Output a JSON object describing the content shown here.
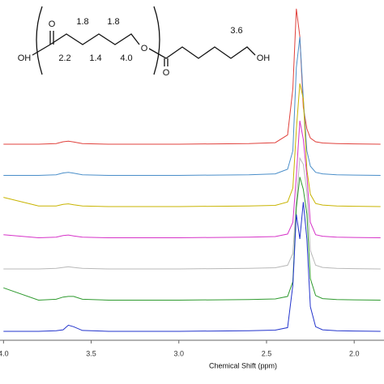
{
  "chart_data": {
    "type": "line",
    "xlabel": "Chemical Shift (ppm)",
    "x": [
      4.0,
      3.8,
      3.7,
      3.66,
      3.63,
      3.6,
      3.55,
      3.4,
      3.0,
      2.6,
      2.45,
      2.38,
      2.35,
      2.33,
      2.31,
      2.29,
      2.27,
      2.25,
      2.22,
      2.18,
      2.1,
      2.0,
      1.85
    ],
    "xlim": [
      4.02,
      1.83
    ],
    "xticks": [
      {
        "value": 4.0,
        "label": "4.0"
      },
      {
        "value": 3.5,
        "label": "3.5"
      },
      {
        "value": 3.0,
        "label": "3.0"
      },
      {
        "value": 2.5,
        "label": "2.5"
      },
      {
        "value": 2.0,
        "label": "2.0"
      }
    ],
    "series": [
      {
        "color": "#e0413c",
        "values": [
          0,
          0,
          0.02,
          0.08,
          0.1,
          0.07,
          0.02,
          0,
          0,
          0.02,
          0.05,
          0.3,
          1.8,
          4.4,
          3.5,
          1.2,
          0.5,
          0.2,
          0.08,
          0.04,
          0.02,
          0.01,
          0
        ]
      },
      {
        "color": "#4a8ec9",
        "values": [
          0,
          0,
          0.02,
          0.08,
          0.1,
          0.07,
          0.02,
          0,
          0,
          0.02,
          0.05,
          0.2,
          0.8,
          3.5,
          4.5,
          2.5,
          0.8,
          0.3,
          0.1,
          0.05,
          0.02,
          0.01,
          0
        ]
      },
      {
        "color": "#c8b400",
        "values": [
          0.3,
          0.02,
          0.02,
          0.07,
          0.09,
          0.06,
          0.02,
          0,
          0,
          0.02,
          0.04,
          0.15,
          0.6,
          2.5,
          4.0,
          3.5,
          1.2,
          0.4,
          0.1,
          0.05,
          0.02,
          0.01,
          0
        ]
      },
      {
        "color": "#d633c8",
        "values": [
          0.1,
          0,
          0.02,
          0.07,
          0.09,
          0.06,
          0.02,
          0,
          0,
          0.02,
          0.04,
          0.12,
          0.5,
          2.0,
          3.8,
          3.2,
          2.0,
          0.5,
          0.1,
          0.05,
          0.02,
          0.01,
          0
        ]
      },
      {
        "color": "#b8b8b8",
        "values": [
          0,
          0,
          0.02,
          0.05,
          0.07,
          0.05,
          0.02,
          0,
          0,
          0.02,
          0.04,
          0.12,
          0.5,
          2.2,
          3.6,
          3.4,
          2.5,
          0.6,
          0.12,
          0.05,
          0.02,
          0.01,
          0
        ]
      },
      {
        "color": "#2e9a2e",
        "values": [
          0.4,
          0,
          0.03,
          0.1,
          0.12,
          0.12,
          0.03,
          0,
          0,
          0.02,
          0.04,
          0.12,
          0.6,
          3.0,
          4.0,
          3.6,
          2.8,
          0.7,
          0.15,
          0.05,
          0.02,
          0.01,
          0
        ]
      },
      {
        "color": "#2233cc",
        "values": [
          0,
          0,
          0.02,
          0.05,
          0.2,
          0.15,
          0.03,
          0,
          0,
          0.02,
          0.04,
          0.12,
          1.5,
          3.8,
          3.0,
          4.2,
          3.0,
          0.8,
          0.15,
          0.05,
          0.02,
          0.01,
          0
        ]
      }
    ]
  },
  "structure": {
    "carbonyl_o1": "O",
    "oh_left": "OH",
    "h_a": "1.8",
    "h_b": "1.8",
    "h_c": "2.2",
    "h_d": "1.4",
    "h_e": "4.0",
    "ester_o": "O",
    "carbonyl_o2": "O",
    "h_f": "3.6",
    "oh_right": "OH"
  }
}
